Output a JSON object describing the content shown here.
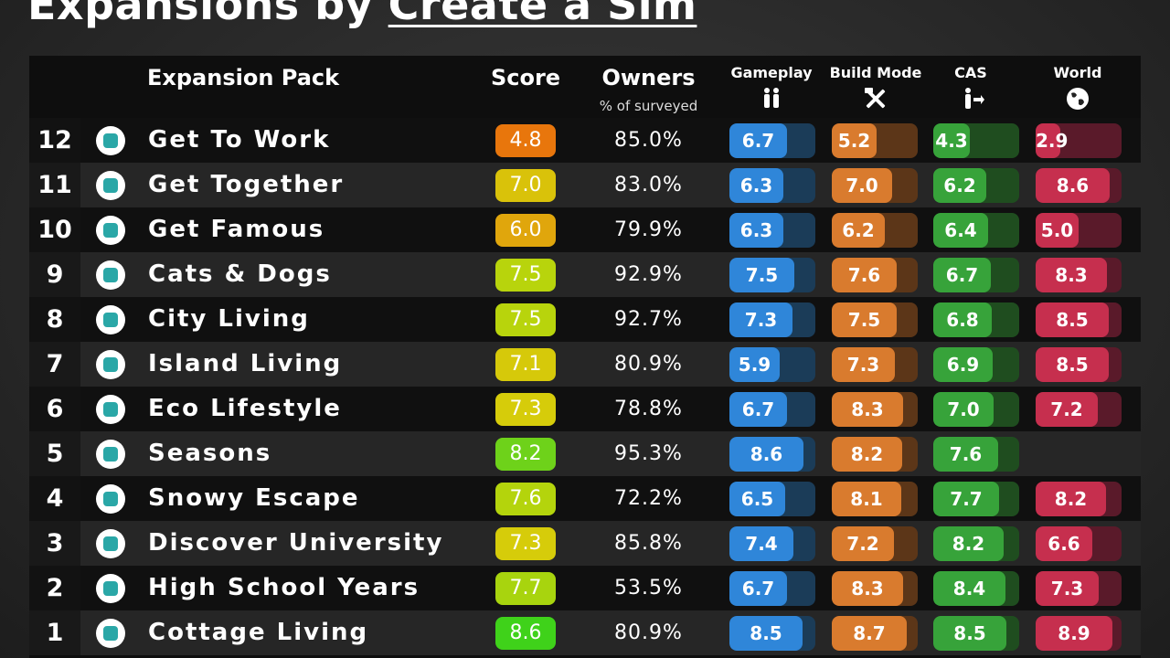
{
  "title": {
    "prefix": "Expansions by ",
    "highlight": "Create a Sim"
  },
  "headers": {
    "pack": "Expansion Pack",
    "score": "Score",
    "owners": "Owners",
    "owners_sub": "% of surveyed",
    "gameplay": "Gameplay",
    "build_mode": "Build Mode",
    "cas": "CAS",
    "world": "World"
  },
  "colors": {
    "gameplay": "#2f86d9",
    "build_mode": "#d97b2e",
    "cas": "#37a33a",
    "world": "#c62f4e"
  },
  "rows": [
    {
      "rank": "12",
      "name": "Get To Work",
      "score": "4.8",
      "owners": "85.0%",
      "gameplay": "6.7",
      "build_mode": "5.2",
      "cas": "4.3",
      "world": "2.9",
      "score_color": "#e8760c",
      "icon": "briefcase-icon"
    },
    {
      "rank": "11",
      "name": "Get Together",
      "score": "7.0",
      "owners": "83.0%",
      "gameplay": "6.3",
      "build_mode": "7.0",
      "cas": "6.2",
      "world": "8.6",
      "score_color": "#d9c20a",
      "icon": "group-icon"
    },
    {
      "rank": "10",
      "name": "Get Famous",
      "score": "6.0",
      "owners": "79.9%",
      "gameplay": "6.3",
      "build_mode": "6.2",
      "cas": "6.4",
      "world": "5.0",
      "score_color": "#e0a60c",
      "icon": "director-chair-icon"
    },
    {
      "rank": "9",
      "name": "Cats & Dogs",
      "score": "7.5",
      "owners": "92.9%",
      "gameplay": "7.5",
      "build_mode": "7.6",
      "cas": "6.7",
      "world": "8.3",
      "score_color": "#b8d40c",
      "icon": "paw-icon"
    },
    {
      "rank": "8",
      "name": "City Living",
      "score": "7.5",
      "owners": "92.7%",
      "gameplay": "7.3",
      "build_mode": "7.5",
      "cas": "6.8",
      "world": "8.5",
      "score_color": "#b8d40c",
      "icon": "city-icon"
    },
    {
      "rank": "7",
      "name": "Island Living",
      "score": "7.1",
      "owners": "80.9%",
      "gameplay": "5.9",
      "build_mode": "7.3",
      "cas": "6.9",
      "world": "8.5",
      "score_color": "#d6c90a",
      "icon": "palm-tree-icon"
    },
    {
      "rank": "6",
      "name": "Eco Lifestyle",
      "score": "7.3",
      "owners": "78.8%",
      "gameplay": "6.7",
      "build_mode": "8.3",
      "cas": "7.0",
      "world": "7.2",
      "score_color": "#d6cc0a",
      "icon": "lightbulb-icon"
    },
    {
      "rank": "5",
      "name": "Seasons",
      "score": "8.2",
      "owners": "95.3%",
      "gameplay": "8.6",
      "build_mode": "8.2",
      "cas": "7.6",
      "world": "",
      "score_color": "#6ed21a",
      "icon": "weather-icon"
    },
    {
      "rank": "4",
      "name": "Snowy Escape",
      "score": "7.6",
      "owners": "72.2%",
      "gameplay": "6.5",
      "build_mode": "8.1",
      "cas": "7.7",
      "world": "8.2",
      "score_color": "#b4d40c",
      "icon": "mountain-icon"
    },
    {
      "rank": "3",
      "name": "Discover University",
      "score": "7.3",
      "owners": "85.8%",
      "gameplay": "7.4",
      "build_mode": "7.2",
      "cas": "8.2",
      "world": "6.6",
      "score_color": "#d6cc0a",
      "icon": "graduation-cap-icon"
    },
    {
      "rank": "2",
      "name": "High School Years",
      "score": "7.7",
      "owners": "53.5%",
      "gameplay": "6.7",
      "build_mode": "8.3",
      "cas": "8.4",
      "world": "7.3",
      "score_color": "#a8d40e",
      "icon": "school-icon"
    },
    {
      "rank": "1",
      "name": "Cottage Living",
      "score": "8.6",
      "owners": "80.9%",
      "gameplay": "8.5",
      "build_mode": "8.7",
      "cas": "8.5",
      "world": "8.9",
      "score_color": "#3fd21a",
      "icon": "cottage-icon"
    }
  ]
}
